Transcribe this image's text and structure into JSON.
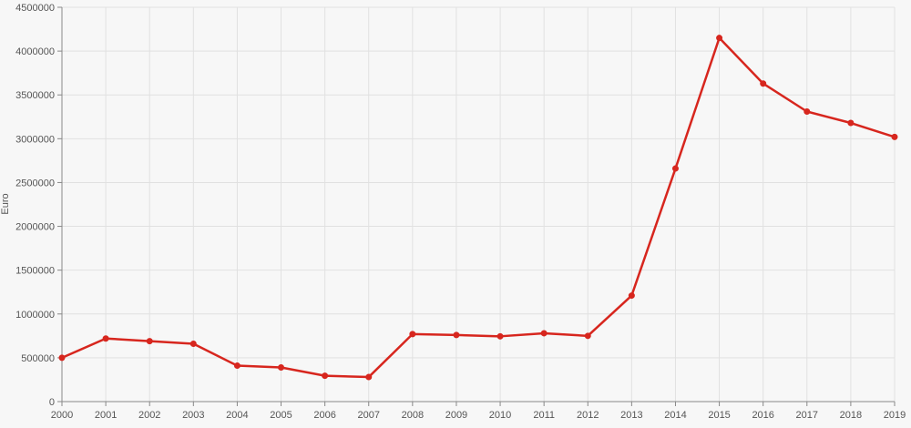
{
  "chart_data": {
    "type": "line",
    "title": "",
    "xlabel": "",
    "ylabel": "Euro",
    "ylim": [
      0,
      4500000
    ],
    "y_ticks": [
      0,
      500000,
      1000000,
      1500000,
      2000000,
      2500000,
      3000000,
      3500000,
      4000000,
      4500000
    ],
    "x": [
      "2000",
      "2001",
      "2002",
      "2003",
      "2004",
      "2005",
      "2006",
      "2007",
      "2008",
      "2009",
      "2010",
      "2011",
      "2012",
      "2013",
      "2014",
      "2015",
      "2016",
      "2017",
      "2018",
      "2019"
    ],
    "series": [
      {
        "values": [
          500000,
          720000,
          690000,
          660000,
          410000,
          390000,
          295000,
          280000,
          770000,
          760000,
          745000,
          780000,
          750000,
          1210000,
          2660000,
          4150000,
          3630000,
          3310000,
          3180000,
          3020000
        ]
      }
    ],
    "grid": true,
    "legend": "none",
    "colors": {
      "line": "#d7261e",
      "point": "#d7261e",
      "grid": "#e1e1e1",
      "axis": "#888888",
      "background": "#f7f7f7",
      "text": "#555555"
    }
  }
}
